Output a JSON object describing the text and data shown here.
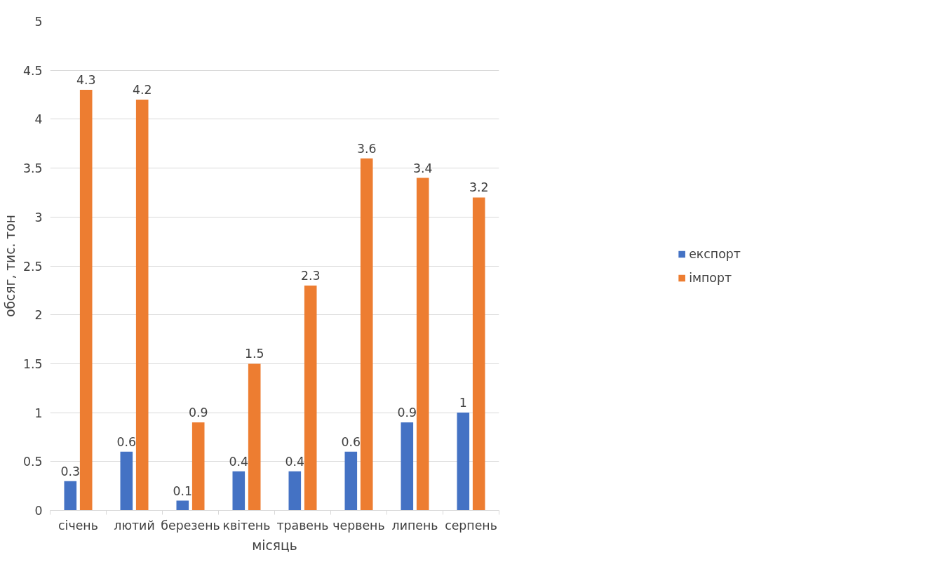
{
  "chart_data": {
    "type": "bar",
    "xlabel": "місяць",
    "ylabel": "обсяг, тис. тон",
    "categories": [
      "січень",
      "лютий",
      "березень",
      "квітень",
      "травень",
      "червень",
      "липень",
      "серпень"
    ],
    "series": [
      {
        "name": "експорт",
        "color": "#4472c4",
        "values": [
          0.3,
          0.6,
          0.1,
          0.4,
          0.4,
          0.6,
          0.9,
          1
        ]
      },
      {
        "name": "імпорт",
        "color": "#ed7d31",
        "values": [
          4.3,
          4.2,
          0.9,
          1.5,
          2.3,
          3.6,
          3.4,
          3.2
        ]
      }
    ],
    "ylim": [
      0,
      5
    ],
    "yticks": [
      0,
      0.5,
      1,
      1.5,
      2,
      2.5,
      3,
      3.5,
      4,
      4.5,
      5
    ],
    "grid": "y",
    "legend": "right",
    "data_labels": true
  }
}
